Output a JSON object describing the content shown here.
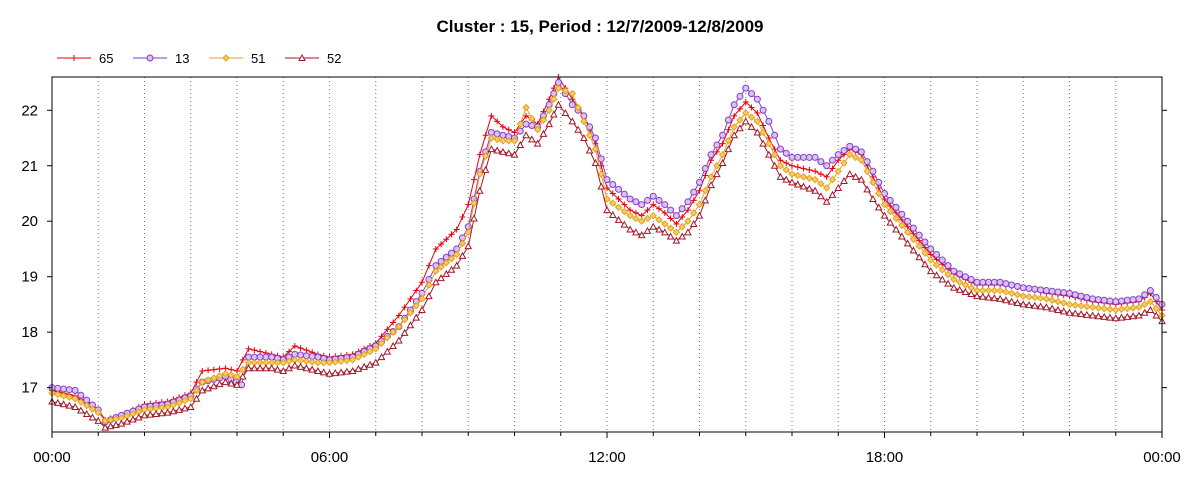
{
  "chart_data": {
    "type": "line",
    "title": "Cluster : 15, Period : 12/7/2009-12/8/2009",
    "xlabel": "",
    "ylabel": "",
    "x_unit": "hours",
    "xlim": [
      0,
      24
    ],
    "ylim": [
      16.2,
      22.6
    ],
    "x_ticks": [
      0,
      6,
      12,
      18,
      24
    ],
    "x_tick_labels": [
      "00:00",
      "06:00",
      "12:00",
      "18:00",
      "00:00"
    ],
    "y_ticks": [
      17,
      18,
      19,
      20,
      21,
      22
    ],
    "y_tick_labels": [
      "17",
      "18",
      "19",
      "20",
      "21",
      "22"
    ],
    "grid": "dotted vertical lines every hour",
    "legend_position": "top-left",
    "series": [
      {
        "name": "65",
        "color": "#e8000b",
        "marker": "plus",
        "points": [
          [
            0,
            16.95
          ],
          [
            0.5,
            16.85
          ],
          [
            1,
            16.6
          ],
          [
            1.15,
            16.42
          ],
          [
            1.5,
            16.5
          ],
          [
            2,
            16.7
          ],
          [
            2.5,
            16.75
          ],
          [
            3,
            16.9
          ],
          [
            3.25,
            17.3
          ],
          [
            3.75,
            17.35
          ],
          [
            4,
            17.3
          ],
          [
            4.25,
            17.7
          ],
          [
            4.75,
            17.6
          ],
          [
            5,
            17.55
          ],
          [
            5.25,
            17.75
          ],
          [
            5.75,
            17.6
          ],
          [
            6,
            17.55
          ],
          [
            6.5,
            17.6
          ],
          [
            7,
            17.8
          ],
          [
            7.5,
            18.3
          ],
          [
            8,
            18.9
          ],
          [
            8.3,
            19.5
          ],
          [
            8.75,
            19.85
          ],
          [
            9,
            20.3
          ],
          [
            9.25,
            21.2
          ],
          [
            9.5,
            21.9
          ],
          [
            9.75,
            21.7
          ],
          [
            10,
            21.6
          ],
          [
            10.25,
            21.9
          ],
          [
            10.5,
            21.75
          ],
          [
            10.75,
            22.2
          ],
          [
            10.95,
            22.6
          ],
          [
            11.25,
            22.2
          ],
          [
            11.5,
            21.9
          ],
          [
            11.75,
            21.4
          ],
          [
            12,
            20.6
          ],
          [
            12.5,
            20.2
          ],
          [
            12.75,
            20.1
          ],
          [
            13,
            20.3
          ],
          [
            13.25,
            20.15
          ],
          [
            13.5,
            19.95
          ],
          [
            13.75,
            20.2
          ],
          [
            14,
            20.55
          ],
          [
            14.25,
            21.1
          ],
          [
            14.5,
            21.4
          ],
          [
            14.75,
            21.9
          ],
          [
            15,
            22.15
          ],
          [
            15.25,
            21.95
          ],
          [
            15.5,
            21.5
          ],
          [
            15.75,
            21.1
          ],
          [
            16,
            21.0
          ],
          [
            16.5,
            20.9
          ],
          [
            16.75,
            20.8
          ],
          [
            17,
            21.1
          ],
          [
            17.25,
            21.3
          ],
          [
            17.5,
            21.2
          ],
          [
            17.75,
            20.8
          ],
          [
            18,
            20.4
          ],
          [
            18.5,
            19.9
          ],
          [
            19,
            19.4
          ],
          [
            19.5,
            19.05
          ],
          [
            20,
            18.85
          ],
          [
            20.5,
            18.85
          ],
          [
            21,
            18.8
          ],
          [
            21.5,
            18.7
          ],
          [
            22,
            18.65
          ],
          [
            22.5,
            18.55
          ],
          [
            23,
            18.5
          ],
          [
            23.5,
            18.55
          ],
          [
            23.75,
            18.7
          ],
          [
            24,
            18.4
          ]
        ]
      },
      {
        "name": "13",
        "color": "#8a3ac8",
        "marker": "circle",
        "points": [
          [
            0,
            17.0
          ],
          [
            0.5,
            16.95
          ],
          [
            1,
            16.6
          ],
          [
            1.15,
            16.38
          ],
          [
            1.5,
            16.5
          ],
          [
            2,
            16.65
          ],
          [
            2.5,
            16.7
          ],
          [
            3,
            16.85
          ],
          [
            3.25,
            17.1
          ],
          [
            3.75,
            17.2
          ],
          [
            4.1,
            17.05
          ],
          [
            4.25,
            17.55
          ],
          [
            4.75,
            17.55
          ],
          [
            5,
            17.5
          ],
          [
            5.25,
            17.6
          ],
          [
            5.75,
            17.55
          ],
          [
            6,
            17.5
          ],
          [
            6.5,
            17.55
          ],
          [
            7,
            17.75
          ],
          [
            7.5,
            18.1
          ],
          [
            8,
            18.7
          ],
          [
            8.3,
            19.2
          ],
          [
            8.75,
            19.5
          ],
          [
            9,
            19.9
          ],
          [
            9.25,
            20.9
          ],
          [
            9.5,
            21.6
          ],
          [
            9.75,
            21.55
          ],
          [
            10,
            21.5
          ],
          [
            10.25,
            21.75
          ],
          [
            10.5,
            21.7
          ],
          [
            10.75,
            22.1
          ],
          [
            10.95,
            22.5
          ],
          [
            11.25,
            22.1
          ],
          [
            11.5,
            21.9
          ],
          [
            11.75,
            21.5
          ],
          [
            12,
            20.75
          ],
          [
            12.5,
            20.4
          ],
          [
            12.75,
            20.3
          ],
          [
            13,
            20.45
          ],
          [
            13.25,
            20.3
          ],
          [
            13.5,
            20.1
          ],
          [
            13.75,
            20.35
          ],
          [
            14,
            20.7
          ],
          [
            14.25,
            21.2
          ],
          [
            14.5,
            21.55
          ],
          [
            14.75,
            22.1
          ],
          [
            15,
            22.4
          ],
          [
            15.25,
            22.2
          ],
          [
            15.5,
            21.8
          ],
          [
            15.75,
            21.3
          ],
          [
            16,
            21.15
          ],
          [
            16.5,
            21.15
          ],
          [
            16.75,
            21.0
          ],
          [
            17,
            21.2
          ],
          [
            17.25,
            21.35
          ],
          [
            17.5,
            21.25
          ],
          [
            17.75,
            20.9
          ],
          [
            18,
            20.5
          ],
          [
            18.5,
            20.0
          ],
          [
            19,
            19.5
          ],
          [
            19.5,
            19.1
          ],
          [
            20,
            18.9
          ],
          [
            20.5,
            18.9
          ],
          [
            21,
            18.8
          ],
          [
            21.5,
            18.75
          ],
          [
            22,
            18.7
          ],
          [
            22.5,
            18.6
          ],
          [
            23,
            18.55
          ],
          [
            23.5,
            18.6
          ],
          [
            23.75,
            18.75
          ],
          [
            24,
            18.5
          ]
        ]
      },
      {
        "name": "51",
        "color": "#e8a020",
        "marker": "diamond",
        "points": [
          [
            0,
            16.9
          ],
          [
            0.5,
            16.8
          ],
          [
            1,
            16.55
          ],
          [
            1.15,
            16.4
          ],
          [
            1.5,
            16.45
          ],
          [
            2,
            16.6
          ],
          [
            2.5,
            16.65
          ],
          [
            3,
            16.8
          ],
          [
            3.25,
            17.1
          ],
          [
            3.75,
            17.25
          ],
          [
            4,
            17.2
          ],
          [
            4.25,
            17.45
          ],
          [
            4.75,
            17.45
          ],
          [
            5,
            17.45
          ],
          [
            5.25,
            17.5
          ],
          [
            5.75,
            17.45
          ],
          [
            6,
            17.45
          ],
          [
            6.5,
            17.5
          ],
          [
            7,
            17.7
          ],
          [
            7.5,
            18.1
          ],
          [
            8,
            18.6
          ],
          [
            8.3,
            19.1
          ],
          [
            8.75,
            19.4
          ],
          [
            9,
            19.8
          ],
          [
            9.25,
            20.85
          ],
          [
            9.5,
            21.5
          ],
          [
            9.75,
            21.45
          ],
          [
            10,
            21.45
          ],
          [
            10.25,
            22.05
          ],
          [
            10.5,
            21.65
          ],
          [
            10.75,
            22.0
          ],
          [
            10.95,
            22.4
          ],
          [
            11.25,
            22.3
          ],
          [
            11.5,
            21.8
          ],
          [
            11.75,
            21.3
          ],
          [
            12,
            20.4
          ],
          [
            12.5,
            20.1
          ],
          [
            12.75,
            20.0
          ],
          [
            13,
            20.1
          ],
          [
            13.25,
            19.95
          ],
          [
            13.5,
            19.8
          ],
          [
            13.75,
            20.0
          ],
          [
            14,
            20.3
          ],
          [
            14.25,
            20.8
          ],
          [
            14.5,
            21.2
          ],
          [
            14.75,
            21.7
          ],
          [
            15,
            21.95
          ],
          [
            15.25,
            21.8
          ],
          [
            15.5,
            21.4
          ],
          [
            15.75,
            21.0
          ],
          [
            16,
            20.85
          ],
          [
            16.5,
            20.75
          ],
          [
            16.75,
            20.6
          ],
          [
            17,
            20.9
          ],
          [
            17.25,
            21.2
          ],
          [
            17.5,
            21.1
          ],
          [
            17.75,
            20.7
          ],
          [
            18,
            20.3
          ],
          [
            18.5,
            19.8
          ],
          [
            19,
            19.3
          ],
          [
            19.5,
            18.95
          ],
          [
            20,
            18.75
          ],
          [
            20.5,
            18.75
          ],
          [
            21,
            18.65
          ],
          [
            21.5,
            18.6
          ],
          [
            22,
            18.5
          ],
          [
            22.5,
            18.45
          ],
          [
            23,
            18.4
          ],
          [
            23.5,
            18.45
          ],
          [
            23.75,
            18.55
          ],
          [
            24,
            18.3
          ]
        ]
      },
      {
        "name": "52",
        "color": "#a01828",
        "marker": "triangle",
        "points": [
          [
            0,
            16.75
          ],
          [
            0.5,
            16.65
          ],
          [
            1,
            16.4
          ],
          [
            1.15,
            16.28
          ],
          [
            1.5,
            16.35
          ],
          [
            2,
            16.5
          ],
          [
            2.5,
            16.55
          ],
          [
            3,
            16.65
          ],
          [
            3.25,
            16.95
          ],
          [
            3.75,
            17.1
          ],
          [
            4,
            17.05
          ],
          [
            4.25,
            17.35
          ],
          [
            4.75,
            17.35
          ],
          [
            5,
            17.3
          ],
          [
            5.25,
            17.4
          ],
          [
            5.75,
            17.3
          ],
          [
            6,
            17.25
          ],
          [
            6.5,
            17.3
          ],
          [
            7,
            17.45
          ],
          [
            7.5,
            17.85
          ],
          [
            8,
            18.4
          ],
          [
            8.3,
            18.9
          ],
          [
            8.75,
            19.2
          ],
          [
            9,
            19.55
          ],
          [
            9.25,
            20.55
          ],
          [
            9.5,
            21.3
          ],
          [
            9.75,
            21.25
          ],
          [
            10,
            21.2
          ],
          [
            10.25,
            21.55
          ],
          [
            10.5,
            21.4
          ],
          [
            10.75,
            21.75
          ],
          [
            10.95,
            22.1
          ],
          [
            11.25,
            21.8
          ],
          [
            11.5,
            21.5
          ],
          [
            11.75,
            21.05
          ],
          [
            12,
            20.2
          ],
          [
            12.5,
            19.85
          ],
          [
            12.75,
            19.75
          ],
          [
            13,
            19.9
          ],
          [
            13.25,
            19.8
          ],
          [
            13.5,
            19.65
          ],
          [
            13.75,
            19.8
          ],
          [
            14,
            20.1
          ],
          [
            14.25,
            20.65
          ],
          [
            14.5,
            21.05
          ],
          [
            14.75,
            21.55
          ],
          [
            15,
            21.8
          ],
          [
            15.25,
            21.6
          ],
          [
            15.5,
            21.2
          ],
          [
            15.75,
            20.8
          ],
          [
            16,
            20.7
          ],
          [
            16.5,
            20.55
          ],
          [
            16.75,
            20.35
          ],
          [
            17,
            20.6
          ],
          [
            17.25,
            20.85
          ],
          [
            17.5,
            20.75
          ],
          [
            17.75,
            20.4
          ],
          [
            18,
            20.1
          ],
          [
            18.5,
            19.6
          ],
          [
            19,
            19.1
          ],
          [
            19.5,
            18.8
          ],
          [
            20,
            18.65
          ],
          [
            20.5,
            18.6
          ],
          [
            21,
            18.5
          ],
          [
            21.5,
            18.45
          ],
          [
            22,
            18.35
          ],
          [
            22.5,
            18.3
          ],
          [
            23,
            18.25
          ],
          [
            23.5,
            18.3
          ],
          [
            23.75,
            18.4
          ],
          [
            24,
            18.2
          ]
        ]
      }
    ]
  }
}
